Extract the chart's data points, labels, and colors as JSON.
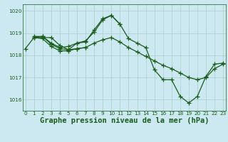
{
  "title": "Graphe pression niveau de la mer (hPa)",
  "background_color": "#cce8f0",
  "line_color": "#1a5c1a",
  "grid_color": "#aacccc",
  "ylim": [
    1015.5,
    1020.3
  ],
  "xlim": [
    -0.3,
    23.3
  ],
  "yticks": [
    1016,
    1017,
    1018,
    1019,
    1020
  ],
  "xticks": [
    0,
    1,
    2,
    3,
    4,
    5,
    6,
    7,
    8,
    9,
    10,
    11,
    12,
    13,
    14,
    15,
    16,
    17,
    18,
    19,
    20,
    21,
    22,
    23
  ],
  "series": [
    {
      "x": [
        0,
        1,
        2,
        3,
        4,
        5,
        6,
        7,
        8,
        9,
        10,
        11,
        12,
        13,
        14,
        15,
        16,
        17,
        18,
        19,
        20,
        21,
        22,
        23
      ],
      "y": [
        1018.3,
        1018.8,
        1018.8,
        1018.8,
        1018.45,
        1018.25,
        1018.55,
        1018.6,
        1019.15,
        1019.65,
        1019.8,
        1019.4,
        1018.75,
        1018.55,
        1018.35,
        1017.35,
        1016.9,
        1016.9,
        1016.15,
        1015.85,
        1016.15,
        1017.05,
        1017.6,
        1017.65
      ]
    },
    {
      "x": [
        1,
        2,
        3,
        4,
        5,
        6,
        7,
        8,
        9,
        10,
        11,
        12,
        13,
        14,
        15,
        16,
        17,
        18,
        19,
        20,
        21,
        22,
        23
      ],
      "y": [
        1018.8,
        1018.75,
        1018.4,
        1018.2,
        1018.2,
        1018.3,
        1018.35,
        1018.55,
        1018.7,
        1018.8,
        1018.6,
        1018.35,
        1018.15,
        1017.95,
        1017.75,
        1017.55,
        1017.4,
        1017.2,
        1017.0,
        1016.9,
        1017.0,
        1017.4,
        1017.6
      ]
    },
    {
      "x": [
        1,
        2,
        3,
        4,
        5,
        6,
        7
      ],
      "y": [
        1018.8,
        1018.85,
        1018.5,
        1018.3,
        1018.25,
        1018.3,
        1018.35
      ]
    },
    {
      "x": [
        1,
        2,
        3,
        4,
        5,
        6,
        7,
        8,
        9,
        10,
        11
      ],
      "y": [
        1018.85,
        1018.85,
        1018.55,
        1018.35,
        1018.4,
        1018.55,
        1018.65,
        1019.05,
        1019.6,
        1019.8,
        1019.4
      ]
    }
  ],
  "marker": "+",
  "markersize": 4,
  "linewidth": 0.9,
  "title_fontsize": 7.5,
  "tick_fontsize": 5.2
}
